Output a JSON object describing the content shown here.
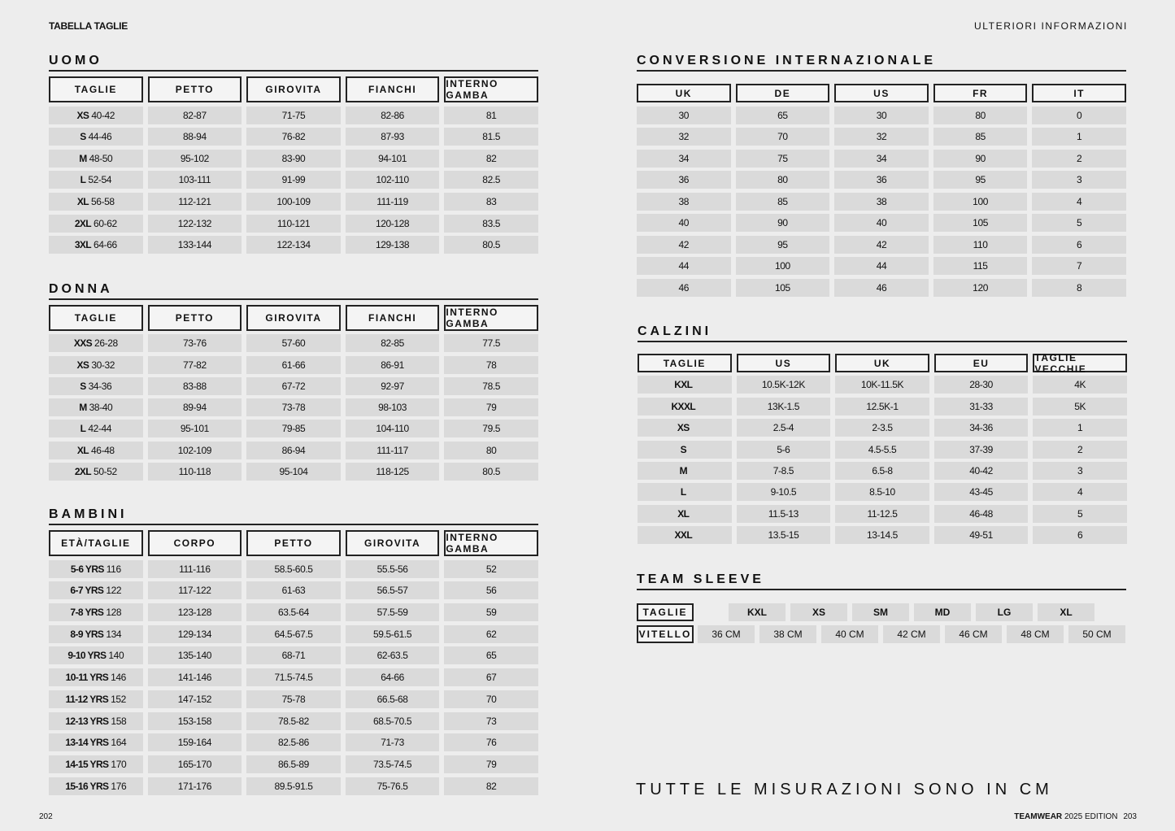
{
  "header": {
    "left": "TABELLA TAGLIE",
    "right": "ULTERIORI INFORMAZIONI"
  },
  "uomo": {
    "title": "UOMO",
    "columns": [
      "TAGLIE",
      "PETTO",
      "GIROVITA",
      "FIANCHI",
      "INTERNO GAMBA"
    ],
    "rows": [
      [
        {
          "b": "XS",
          "v": "40-42"
        },
        "82-87",
        "71-75",
        "82-86",
        "81"
      ],
      [
        {
          "b": "S",
          "v": "44-46"
        },
        "88-94",
        "76-82",
        "87-93",
        "81.5"
      ],
      [
        {
          "b": "M",
          "v": "48-50"
        },
        "95-102",
        "83-90",
        "94-101",
        "82"
      ],
      [
        {
          "b": "L",
          "v": "52-54"
        },
        "103-111",
        "91-99",
        "102-110",
        "82.5"
      ],
      [
        {
          "b": "XL",
          "v": "56-58"
        },
        "112-121",
        "100-109",
        "111-119",
        "83"
      ],
      [
        {
          "b": "2XL",
          "v": "60-62"
        },
        "122-132",
        "110-121",
        "120-128",
        "83.5"
      ],
      [
        {
          "b": "3XL",
          "v": "64-66"
        },
        "133-144",
        "122-134",
        "129-138",
        "80.5"
      ]
    ]
  },
  "donna": {
    "title": "DONNA",
    "columns": [
      "TAGLIE",
      "PETTO",
      "GIROVITA",
      "FIANCHI",
      "INTERNO GAMBA"
    ],
    "rows": [
      [
        {
          "b": "XXS",
          "v": "26-28"
        },
        "73-76",
        "57-60",
        "82-85",
        "77.5"
      ],
      [
        {
          "b": "XS",
          "v": "30-32"
        },
        "77-82",
        "61-66",
        "86-91",
        "78"
      ],
      [
        {
          "b": "S",
          "v": "34-36"
        },
        "83-88",
        "67-72",
        "92-97",
        "78.5"
      ],
      [
        {
          "b": "M",
          "v": "38-40"
        },
        "89-94",
        "73-78",
        "98-103",
        "79"
      ],
      [
        {
          "b": "L",
          "v": "42-44"
        },
        "95-101",
        "79-85",
        "104-110",
        "79.5"
      ],
      [
        {
          "b": "XL",
          "v": "46-48"
        },
        "102-109",
        "86-94",
        "111-117",
        "80"
      ],
      [
        {
          "b": "2XL",
          "v": "50-52"
        },
        "110-118",
        "95-104",
        "118-125",
        "80.5"
      ]
    ]
  },
  "bambini": {
    "title": "BAMBINI",
    "columns": [
      "ETÀ/TAGLIE",
      "CORPO",
      "PETTO",
      "GIROVITA",
      "INTERNO GAMBA"
    ],
    "rows": [
      [
        {
          "b": "5-6 YRS",
          "v": "116"
        },
        "111-116",
        "58.5-60.5",
        "55.5-56",
        "52"
      ],
      [
        {
          "b": "6-7 YRS",
          "v": "122"
        },
        "117-122",
        "61-63",
        "56.5-57",
        "56"
      ],
      [
        {
          "b": "7-8 YRS",
          "v": "128"
        },
        "123-128",
        "63.5-64",
        "57.5-59",
        "59"
      ],
      [
        {
          "b": "8-9 YRS",
          "v": "134"
        },
        "129-134",
        "64.5-67.5",
        "59.5-61.5",
        "62"
      ],
      [
        {
          "b": "9-10 YRS",
          "v": "140"
        },
        "135-140",
        "68-71",
        "62-63.5",
        "65"
      ],
      [
        {
          "b": "10-11 YRS",
          "v": "146"
        },
        "141-146",
        "71.5-74.5",
        "64-66",
        "67"
      ],
      [
        {
          "b": "11-12 YRS",
          "v": "152"
        },
        "147-152",
        "75-78",
        "66.5-68",
        "70"
      ],
      [
        {
          "b": "12-13 YRS",
          "v": "158"
        },
        "153-158",
        "78.5-82",
        "68.5-70.5",
        "73"
      ],
      [
        {
          "b": "13-14 YRS",
          "v": "164"
        },
        "159-164",
        "82.5-86",
        "71-73",
        "76"
      ],
      [
        {
          "b": "14-15 YRS",
          "v": "170"
        },
        "165-170",
        "86.5-89",
        "73.5-74.5",
        "79"
      ],
      [
        {
          "b": "15-16 YRS",
          "v": "176"
        },
        "171-176",
        "89.5-91.5",
        "75-76.5",
        "82"
      ]
    ]
  },
  "conversione": {
    "title": "CONVERSIONE INTERNAZIONALE",
    "columns": [
      "UK",
      "DE",
      "US",
      "FR",
      "IT"
    ],
    "rows": [
      [
        "30",
        "65",
        "30",
        "80",
        "0"
      ],
      [
        "32",
        "70",
        "32",
        "85",
        "1"
      ],
      [
        "34",
        "75",
        "34",
        "90",
        "2"
      ],
      [
        "36",
        "80",
        "36",
        "95",
        "3"
      ],
      [
        "38",
        "85",
        "38",
        "100",
        "4"
      ],
      [
        "40",
        "90",
        "40",
        "105",
        "5"
      ],
      [
        "42",
        "95",
        "42",
        "110",
        "6"
      ],
      [
        "44",
        "100",
        "44",
        "115",
        "7"
      ],
      [
        "46",
        "105",
        "46",
        "120",
        "8"
      ]
    ]
  },
  "calzini": {
    "title": "CALZINI",
    "columns": [
      "TAGLIE",
      "US",
      "UK",
      "EU",
      "TAGLIE VECCHIE"
    ],
    "rows": [
      [
        {
          "b": "KXL",
          "v": ""
        },
        "10.5K-12K",
        "10K-11.5K",
        "28-30",
        "4K"
      ],
      [
        {
          "b": "KXXL",
          "v": ""
        },
        "13K-1.5",
        "12.5K-1",
        "31-33",
        "5K"
      ],
      [
        {
          "b": "XS",
          "v": ""
        },
        "2.5-4",
        "2-3.5",
        "34-36",
        "1"
      ],
      [
        {
          "b": "S",
          "v": ""
        },
        "5-6",
        "4.5-5.5",
        "37-39",
        "2"
      ],
      [
        {
          "b": "M",
          "v": ""
        },
        "7-8.5",
        "6.5-8",
        "40-42",
        "3"
      ],
      [
        {
          "b": "L",
          "v": ""
        },
        "9-10.5",
        "8.5-10",
        "43-45",
        "4"
      ],
      [
        {
          "b": "XL",
          "v": ""
        },
        "11.5-13",
        "11-12.5",
        "46-48",
        "5"
      ],
      [
        {
          "b": "XXL",
          "v": ""
        },
        "13.5-15",
        "13-14.5",
        "49-51",
        "6"
      ]
    ]
  },
  "team_sleeve": {
    "title": "TEAM SLEEVE",
    "sizes_label": "TAGLIE",
    "sizes": [
      "KXL",
      "XS",
      "SM",
      "MD",
      "LG",
      "XL"
    ],
    "calf_label": "VITELLO",
    "calf": [
      "36 CM",
      "38 CM",
      "40 CM",
      "42 CM",
      "46 CM",
      "48 CM",
      "50 CM"
    ]
  },
  "footer": {
    "note": "TUTTE LE MISURAZIONI SONO IN CM",
    "page_left": "202",
    "brand": "TEAMWEAR",
    "edition": "2025 EDITION",
    "page_right": "203"
  }
}
